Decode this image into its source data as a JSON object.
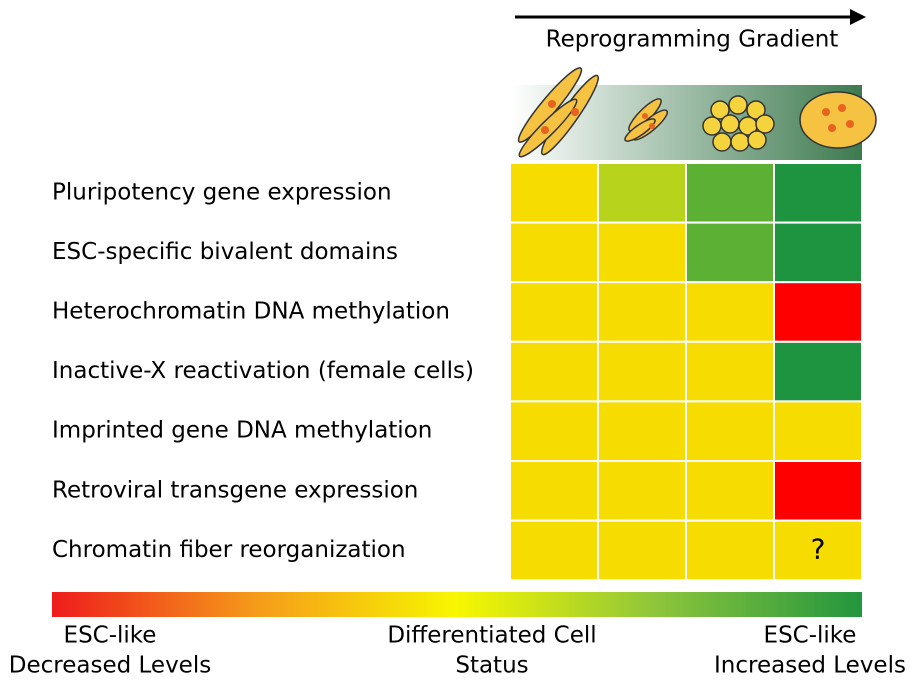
{
  "header": {
    "title": "Reprogramming Gradient"
  },
  "rows": [
    {
      "label": "Pluripotency gene expression",
      "cells": [
        {
          "color": "#f7dc00"
        },
        {
          "color": "#b7d31c"
        },
        {
          "color": "#5cb034"
        },
        {
          "color": "#1f9440"
        }
      ]
    },
    {
      "label": "ESC-specific bivalent domains",
      "cells": [
        {
          "color": "#f7dc00"
        },
        {
          "color": "#f7dc00"
        },
        {
          "color": "#5cb034"
        },
        {
          "color": "#1f9440"
        }
      ]
    },
    {
      "label": "Heterochromatin DNA methylation",
      "cells": [
        {
          "color": "#f7dc00"
        },
        {
          "color": "#f7dc00"
        },
        {
          "color": "#f7dc00"
        },
        {
          "color": "#ff0000"
        }
      ]
    },
    {
      "label": "Inactive-X reactivation (female cells)",
      "cells": [
        {
          "color": "#f7dc00"
        },
        {
          "color": "#f7dc00"
        },
        {
          "color": "#f7dc00"
        },
        {
          "color": "#1f9440"
        }
      ]
    },
    {
      "label": "Imprinted gene DNA methylation",
      "cells": [
        {
          "color": "#f7dc00"
        },
        {
          "color": "#f7dc00"
        },
        {
          "color": "#f7dc00"
        },
        {
          "color": "#f7dc00"
        }
      ]
    },
    {
      "label": "Retroviral transgene expression",
      "cells": [
        {
          "color": "#f7dc00"
        },
        {
          "color": "#f7dc00"
        },
        {
          "color": "#f7dc00"
        },
        {
          "color": "#ff0000"
        }
      ]
    },
    {
      "label": "Chromatin fiber reorganization",
      "cells": [
        {
          "color": "#f7dc00"
        },
        {
          "color": "#f7dc00"
        },
        {
          "color": "#f7dc00"
        },
        {
          "color": "#f7dc00",
          "text": "?"
        }
      ]
    }
  ],
  "legend": {
    "gradient": [
      "#ee1c1c",
      "#f59a1a",
      "#f7f700",
      "#8cc43c",
      "#22963e"
    ],
    "labels": [
      {
        "lines": [
          "ESC-like",
          "Decreased Levels"
        ]
      },
      {
        "lines": [
          "Differentiated Cell",
          "Status"
        ]
      },
      {
        "lines": [
          "ESC-like",
          "Increased Levels"
        ]
      }
    ]
  }
}
